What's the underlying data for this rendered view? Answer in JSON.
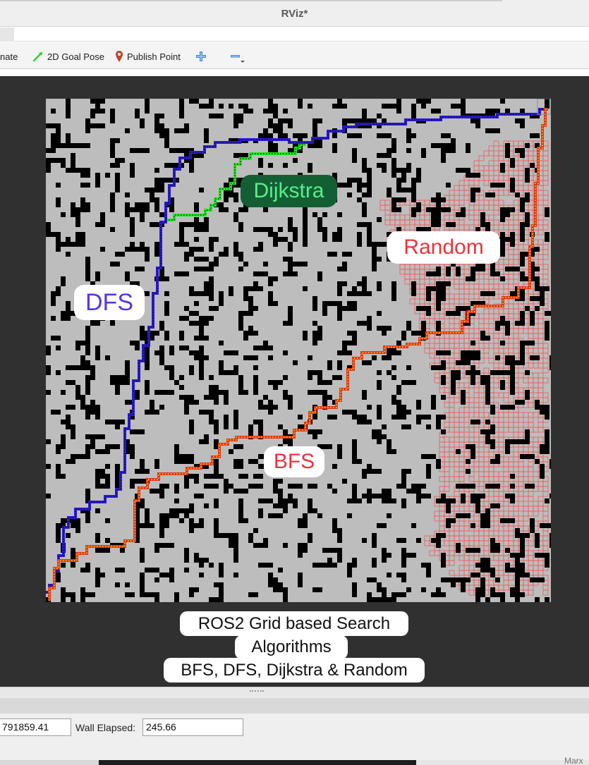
{
  "window": {
    "title": "RViz*"
  },
  "toolbar": {
    "estimate_label": "nate",
    "goal_pose_label": "2D Goal Pose",
    "publish_point_label": "Publish Point"
  },
  "labels": {
    "dijkstra": "Dijkstra",
    "random": "Random",
    "dfs": "DFS",
    "bfs": "BFS"
  },
  "caption": {
    "line1": "ROS2 Grid based Search",
    "line2": "Algorithms",
    "line3": "BFS, DFS, Dijkstra & Random"
  },
  "status": {
    "ros_elapsed_value": "791859.41",
    "wall_elapsed_label": "Wall Elapsed:",
    "wall_elapsed_value": "245.66",
    "corner_text": "Marx"
  },
  "colors": {
    "viewport_bg": "#303030",
    "map_free": "#bdbdbd",
    "obstacle": "#000000",
    "dfs_path": "#2b1bd6",
    "bfs_path": "#e0380e",
    "dijkstra_path": "#22e626",
    "random_explored": "#ee5a5a",
    "dfs_label": "#5a36e0",
    "dijkstra_label_bg": "#145e34",
    "dijkstra_label_text": "#56f08a",
    "random_label": "#e8353d",
    "bfs_label": "#e8353d"
  }
}
